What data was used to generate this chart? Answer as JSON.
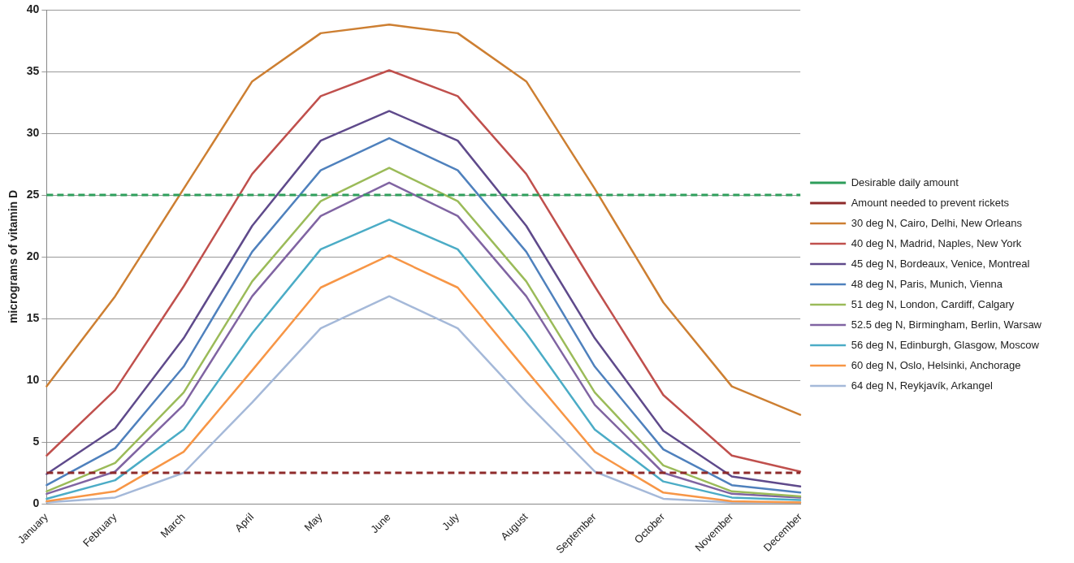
{
  "chart_data": {
    "type": "line",
    "ylabel": "micrograms of vitamin D",
    "categories": [
      "January",
      "February",
      "March",
      "April",
      "May",
      "June",
      "July",
      "August",
      "September",
      "October",
      "November",
      "December"
    ],
    "ylim": [
      0,
      40
    ],
    "yticks": [
      0,
      5,
      10,
      15,
      20,
      25,
      30,
      35,
      40
    ],
    "grid": "y",
    "legend": "right",
    "marker": "none",
    "line_style": "solid",
    "ref_lines": [
      {
        "axis": "y",
        "value": 25,
        "label": "Desirable daily amount",
        "color": "#2e9e5b",
        "line_style": "dashed"
      },
      {
        "axis": "y",
        "value": 2.5,
        "label": "Amount needed to prevent rickets",
        "color": "#8e2b2b",
        "line_style": "dashed"
      }
    ],
    "series": [
      {
        "name": "30 deg N, Cairo, Delhi, New Orleans",
        "color": "#cd7f32",
        "values": [
          9.5,
          16.8,
          25.5,
          34.2,
          38.1,
          38.8,
          38.1,
          34.2,
          25.5,
          16.3,
          9.5,
          7.2
        ]
      },
      {
        "name": "40 deg N, Madrid, Naples, New York",
        "color": "#c0504d",
        "values": [
          3.9,
          9.2,
          17.6,
          26.7,
          33.0,
          35.1,
          33.0,
          26.7,
          17.6,
          8.8,
          3.9,
          2.6
        ]
      },
      {
        "name": "45 deg N, Bordeaux, Venice, Montreal",
        "color": "#5f4a8b",
        "values": [
          2.4,
          6.1,
          13.4,
          22.5,
          29.4,
          31.8,
          29.4,
          22.5,
          13.4,
          5.9,
          2.2,
          1.4
        ]
      },
      {
        "name": "48 deg N, Paris, Munich, Vienna",
        "color": "#4f81bd",
        "values": [
          1.5,
          4.5,
          11.1,
          20.4,
          27.0,
          29.6,
          27.0,
          20.4,
          11.1,
          4.4,
          1.5,
          0.9
        ]
      },
      {
        "name": "51 deg N, London, Cardiff, Calgary",
        "color": "#9bbb59",
        "values": [
          1.0,
          3.3,
          9.0,
          18.0,
          24.5,
          27.2,
          24.5,
          18.0,
          9.0,
          3.1,
          1.0,
          0.6
        ]
      },
      {
        "name": "52.5 deg N, Birmingham, Berlin, Warsaw",
        "color": "#8064a2",
        "values": [
          0.8,
          2.6,
          8.0,
          16.8,
          23.3,
          26.0,
          23.3,
          16.8,
          8.0,
          2.5,
          0.8,
          0.5
        ]
      },
      {
        "name": "56 deg N, Edinburgh, Glasgow, Moscow",
        "color": "#4bacc6",
        "values": [
          0.4,
          1.9,
          6.0,
          13.8,
          20.6,
          23.0,
          20.6,
          13.8,
          6.0,
          1.8,
          0.5,
          0.3
        ]
      },
      {
        "name": "60 deg N, Oslo, Helsinki, Anchorage",
        "color": "#f79646",
        "values": [
          0.2,
          1.0,
          4.2,
          10.8,
          17.5,
          20.1,
          17.5,
          10.8,
          4.2,
          0.9,
          0.2,
          0.1
        ]
      },
      {
        "name": "64 deg N, Reykjavík, Arkangel",
        "color": "#a5b9d9",
        "values": [
          0.1,
          0.5,
          2.5,
          8.2,
          14.2,
          16.8,
          14.2,
          8.2,
          2.6,
          0.4,
          0.1,
          0.1
        ]
      }
    ]
  }
}
